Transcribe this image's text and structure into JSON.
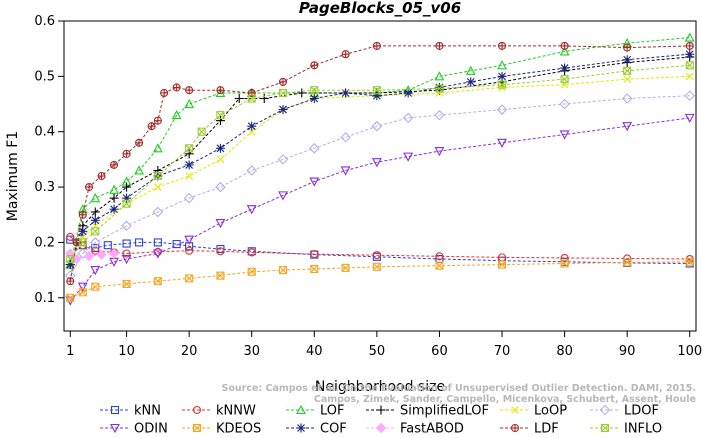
{
  "chart_data": {
    "type": "line",
    "title": "PageBlocks_05_v06",
    "xlabel": "Neighborhood size",
    "ylabel": "Maximum F1",
    "xlim": [
      0,
      101
    ],
    "ylim": [
      0.04,
      0.6
    ],
    "xticks": [
      1,
      10,
      20,
      30,
      40,
      50,
      60,
      70,
      80,
      90,
      100
    ],
    "yticks": [
      0.1,
      0.2,
      0.3,
      0.4,
      0.5,
      0.6
    ],
    "grid": false,
    "legend_position": "bottom",
    "credit_line1": "Source: Campos et al. On the Evaluation of Unsupervised Outlier Detection. DAMI, 2015.",
    "credit_line2": "Campos, Zimek, Sander, Campello, Micenkova, Schubert, Assent, Houle",
    "series": [
      {
        "name": "kNN",
        "color": "#2b3fd6",
        "marker": "square",
        "points": [
          [
            1,
            0.205
          ],
          [
            3,
            0.195
          ],
          [
            5,
            0.19
          ],
          [
            7,
            0.195
          ],
          [
            10,
            0.198
          ],
          [
            12,
            0.2
          ],
          [
            15,
            0.2
          ],
          [
            18,
            0.197
          ],
          [
            20,
            0.193
          ],
          [
            25,
            0.188
          ],
          [
            30,
            0.184
          ],
          [
            40,
            0.178
          ],
          [
            50,
            0.174
          ],
          [
            60,
            0.17
          ],
          [
            70,
            0.167
          ],
          [
            80,
            0.165
          ],
          [
            90,
            0.163
          ],
          [
            100,
            0.162
          ]
        ]
      },
      {
        "name": "kNNW",
        "color": "#e0332f",
        "marker": "circle",
        "points": [
          [
            1,
            0.21
          ],
          [
            3,
            0.195
          ],
          [
            5,
            0.185
          ],
          [
            8,
            0.182
          ],
          [
            10,
            0.18
          ],
          [
            15,
            0.183
          ],
          [
            20,
            0.185
          ],
          [
            25,
            0.184
          ],
          [
            30,
            0.182
          ],
          [
            40,
            0.179
          ],
          [
            50,
            0.177
          ],
          [
            60,
            0.175
          ],
          [
            70,
            0.173
          ],
          [
            80,
            0.172
          ],
          [
            90,
            0.171
          ],
          [
            100,
            0.17
          ]
        ]
      },
      {
        "name": "LOF",
        "color": "#22cc22",
        "marker": "triangle-up",
        "points": [
          [
            1,
            0.16
          ],
          [
            3,
            0.26
          ],
          [
            5,
            0.28
          ],
          [
            8,
            0.295
          ],
          [
            10,
            0.31
          ],
          [
            12,
            0.33
          ],
          [
            15,
            0.37
          ],
          [
            18,
            0.43
          ],
          [
            20,
            0.45
          ],
          [
            25,
            0.47
          ],
          [
            30,
            0.47
          ],
          [
            40,
            0.47
          ],
          [
            50,
            0.47
          ],
          [
            55,
            0.475
          ],
          [
            60,
            0.5
          ],
          [
            65,
            0.51
          ],
          [
            70,
            0.52
          ],
          [
            80,
            0.545
          ],
          [
            90,
            0.56
          ],
          [
            100,
            0.57
          ]
        ]
      },
      {
        "name": "SimplifiedLOF",
        "color": "#000000",
        "marker": "plus",
        "points": [
          [
            1,
            0.16
          ],
          [
            3,
            0.23
          ],
          [
            5,
            0.255
          ],
          [
            8,
            0.28
          ],
          [
            10,
            0.3
          ],
          [
            15,
            0.33
          ],
          [
            20,
            0.36
          ],
          [
            25,
            0.42
          ],
          [
            28,
            0.46
          ],
          [
            32,
            0.46
          ],
          [
            38,
            0.47
          ],
          [
            45,
            0.47
          ],
          [
            50,
            0.47
          ],
          [
            60,
            0.475
          ],
          [
            70,
            0.49
          ],
          [
            80,
            0.51
          ],
          [
            90,
            0.525
          ],
          [
            100,
            0.535
          ]
        ]
      },
      {
        "name": "LoOP",
        "color": "#e6e600",
        "marker": "x",
        "points": [
          [
            1,
            0.16
          ],
          [
            3,
            0.21
          ],
          [
            5,
            0.23
          ],
          [
            10,
            0.27
          ],
          [
            15,
            0.3
          ],
          [
            20,
            0.32
          ],
          [
            25,
            0.35
          ],
          [
            30,
            0.4
          ],
          [
            35,
            0.44
          ],
          [
            40,
            0.46
          ],
          [
            50,
            0.465
          ],
          [
            60,
            0.47
          ],
          [
            70,
            0.48
          ],
          [
            80,
            0.485
          ],
          [
            90,
            0.495
          ],
          [
            100,
            0.5
          ]
        ]
      },
      {
        "name": "LDOF",
        "color": "#b0b0ee",
        "marker": "diamond",
        "points": [
          [
            1,
            0.14
          ],
          [
            3,
            0.18
          ],
          [
            5,
            0.2
          ],
          [
            10,
            0.23
          ],
          [
            15,
            0.255
          ],
          [
            20,
            0.28
          ],
          [
            25,
            0.3
          ],
          [
            30,
            0.33
          ],
          [
            35,
            0.35
          ],
          [
            40,
            0.37
          ],
          [
            45,
            0.39
          ],
          [
            50,
            0.41
          ],
          [
            55,
            0.425
          ],
          [
            60,
            0.43
          ],
          [
            70,
            0.44
          ],
          [
            80,
            0.45
          ],
          [
            90,
            0.46
          ],
          [
            100,
            0.465
          ]
        ]
      },
      {
        "name": "ODIN",
        "color": "#8a2be2",
        "marker": "triangle-down",
        "points": [
          [
            1,
            0.095
          ],
          [
            3,
            0.12
          ],
          [
            5,
            0.15
          ],
          [
            8,
            0.165
          ],
          [
            10,
            0.17
          ],
          [
            15,
            0.18
          ],
          [
            20,
            0.205
          ],
          [
            25,
            0.235
          ],
          [
            30,
            0.26
          ],
          [
            35,
            0.285
          ],
          [
            40,
            0.31
          ],
          [
            45,
            0.33
          ],
          [
            50,
            0.345
          ],
          [
            55,
            0.355
          ],
          [
            60,
            0.365
          ],
          [
            70,
            0.38
          ],
          [
            80,
            0.395
          ],
          [
            90,
            0.41
          ],
          [
            100,
            0.425
          ]
        ]
      },
      {
        "name": "KDEOS",
        "color": "#f5a623",
        "marker": "square-x",
        "points": [
          [
            1,
            0.1
          ],
          [
            3,
            0.11
          ],
          [
            5,
            0.12
          ],
          [
            10,
            0.125
          ],
          [
            15,
            0.13
          ],
          [
            20,
            0.135
          ],
          [
            25,
            0.14
          ],
          [
            30,
            0.147
          ],
          [
            35,
            0.15
          ],
          [
            40,
            0.152
          ],
          [
            45,
            0.154
          ],
          [
            50,
            0.156
          ],
          [
            60,
            0.158
          ],
          [
            70,
            0.16
          ],
          [
            80,
            0.162
          ],
          [
            90,
            0.164
          ],
          [
            100,
            0.165
          ]
        ]
      },
      {
        "name": "COF",
        "color": "#1a237e",
        "marker": "star",
        "points": [
          [
            1,
            0.16
          ],
          [
            3,
            0.22
          ],
          [
            5,
            0.24
          ],
          [
            8,
            0.26
          ],
          [
            10,
            0.28
          ],
          [
            15,
            0.32
          ],
          [
            20,
            0.34
          ],
          [
            25,
            0.37
          ],
          [
            30,
            0.41
          ],
          [
            35,
            0.44
          ],
          [
            40,
            0.46
          ],
          [
            45,
            0.47
          ],
          [
            50,
            0.465
          ],
          [
            55,
            0.47
          ],
          [
            60,
            0.48
          ],
          [
            65,
            0.49
          ],
          [
            70,
            0.5
          ],
          [
            80,
            0.515
          ],
          [
            90,
            0.53
          ],
          [
            100,
            0.54
          ]
        ]
      },
      {
        "name": "FastABOD",
        "color": "#ffaaff",
        "marker": "diamond-filled",
        "points": [
          [
            1,
            0.18
          ],
          [
            2,
            0.17
          ],
          [
            4,
            0.175
          ],
          [
            6,
            0.178
          ],
          [
            8,
            0.18
          ]
        ]
      },
      {
        "name": "LDF",
        "color": "#a52a2a",
        "marker": "circle-plus",
        "points": [
          [
            1,
            0.13
          ],
          [
            2,
            0.2
          ],
          [
            3,
            0.25
          ],
          [
            4,
            0.3
          ],
          [
            6,
            0.32
          ],
          [
            8,
            0.34
          ],
          [
            10,
            0.36
          ],
          [
            12,
            0.38
          ],
          [
            14,
            0.41
          ],
          [
            15,
            0.42
          ],
          [
            16,
            0.47
          ],
          [
            18,
            0.48
          ],
          [
            20,
            0.475
          ],
          [
            25,
            0.475
          ],
          [
            30,
            0.47
          ],
          [
            35,
            0.49
          ],
          [
            40,
            0.52
          ],
          [
            45,
            0.54
          ],
          [
            50,
            0.555
          ],
          [
            60,
            0.555
          ],
          [
            70,
            0.555
          ],
          [
            80,
            0.555
          ],
          [
            90,
            0.552
          ],
          [
            100,
            0.555
          ]
        ]
      },
      {
        "name": "INFLO",
        "color": "#9acd32",
        "marker": "square-x",
        "points": [
          [
            1,
            0.17
          ],
          [
            3,
            0.2
          ],
          [
            5,
            0.22
          ],
          [
            10,
            0.27
          ],
          [
            15,
            0.32
          ],
          [
            20,
            0.37
          ],
          [
            22,
            0.4
          ],
          [
            25,
            0.43
          ],
          [
            30,
            0.46
          ],
          [
            35,
            0.47
          ],
          [
            40,
            0.475
          ],
          [
            50,
            0.475
          ],
          [
            60,
            0.478
          ],
          [
            70,
            0.485
          ],
          [
            80,
            0.495
          ],
          [
            90,
            0.51
          ],
          [
            100,
            0.52
          ]
        ]
      }
    ]
  }
}
